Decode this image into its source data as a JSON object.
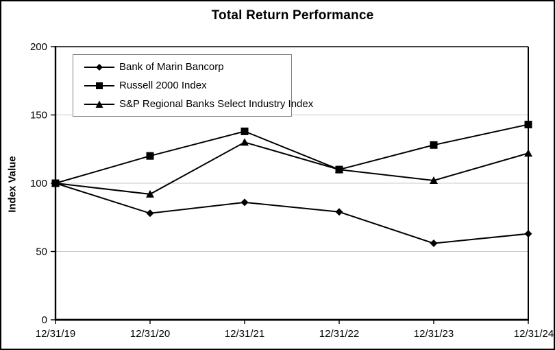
{
  "chart_data": {
    "type": "line",
    "title": "Total Return Performance",
    "xlabel": "",
    "ylabel": "Index Value",
    "categories": [
      "12/31/19",
      "12/31/20",
      "12/31/21",
      "12/31/22",
      "12/31/23",
      "12/31/24"
    ],
    "series": [
      {
        "name": "Bank of Marin Bancorp",
        "marker": "diamond",
        "values": [
          100,
          78,
          86,
          79,
          56,
          63
        ]
      },
      {
        "name": "Russell 2000 Index",
        "marker": "square",
        "values": [
          100,
          120,
          138,
          110,
          128,
          143
        ]
      },
      {
        "name": "S&P Regional Banks Select Industry Index",
        "marker": "triangle",
        "values": [
          100,
          92,
          130,
          110,
          102,
          122
        ]
      }
    ],
    "ylim": [
      0,
      200
    ],
    "yticks": [
      0,
      50,
      100,
      150,
      200
    ],
    "grid": true,
    "legend_position": "inside-upper-left",
    "colors": {
      "line": "#000000",
      "marker": "#000000",
      "grid": "#c9c9c9",
      "axis": "#000000",
      "background": "#ffffff",
      "frame_border": "#000000",
      "legend_border": "#7f7f7f"
    }
  }
}
